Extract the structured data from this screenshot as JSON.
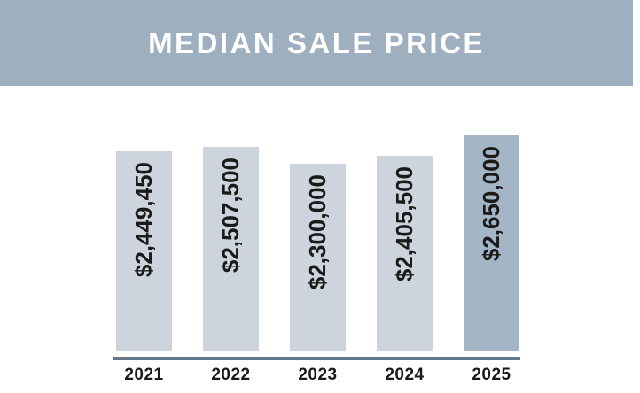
{
  "header": {
    "title": "MEDIAN SALE PRICE"
  },
  "chart_data": {
    "type": "bar",
    "title": "MEDIAN SALE PRICE",
    "xlabel": "",
    "ylabel": "",
    "categories": [
      "2021",
      "2022",
      "2023",
      "2024",
      "2025"
    ],
    "values": [
      2449450,
      2507500,
      2300000,
      2405500,
      2650000
    ],
    "value_labels": [
      "$2,449,450",
      "$2,507,500",
      "$2,300,000",
      "$2,405,500",
      "$2,650,000"
    ],
    "ylim": [
      0,
      2650000
    ],
    "grid": false,
    "legend": false,
    "highlight_category": "2025",
    "colors": {
      "header_bg": "#9eb0c0",
      "header_text": "#ffffff",
      "bar_fill": "#cdd4dd",
      "bar_fill_highlight": "#a4b6c5",
      "axis_line": "#64788c",
      "label_text": "#1a1a1a"
    }
  }
}
